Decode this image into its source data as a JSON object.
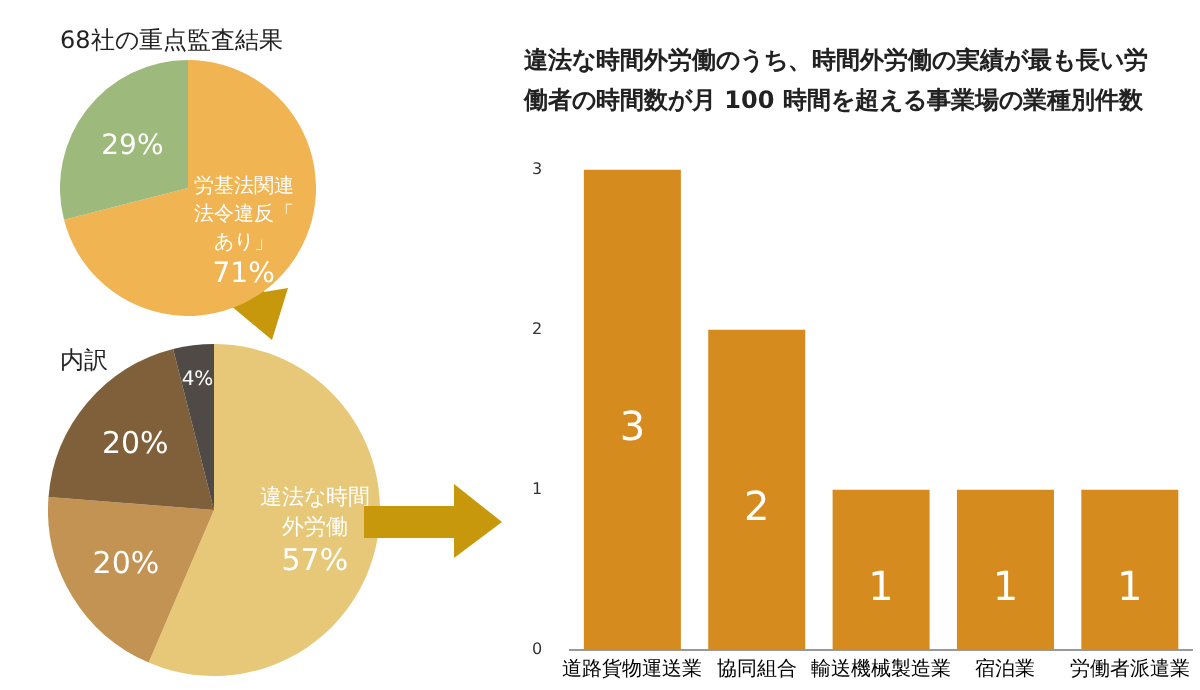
{
  "chart_data": [
    {
      "type": "pie",
      "title": "68社の重点監査結果",
      "categories": [
        "労基法関連法令違反「あり」",
        null
      ],
      "values": [
        71,
        29
      ],
      "value_labels": [
        "71%",
        "29%"
      ],
      "colors": [
        "#f0b452",
        "#9db97b"
      ],
      "legend": false
    },
    {
      "type": "pie",
      "title": "内訳",
      "categories": [
        "違法な時間外労働",
        null,
        null,
        null
      ],
      "values": [
        57,
        20,
        20,
        4
      ],
      "value_labels": [
        "57%",
        "20%",
        "20%",
        "4%"
      ],
      "colors": [
        "#e6c878",
        "#c29352",
        "#7f603b",
        "#4f4a45"
      ],
      "legend": false
    },
    {
      "type": "bar",
      "title": "違法な時間外労働のうち、時間外労働の実績が最も長い労働者の時間数が月 100 時間を超える事業場の業種別件数",
      "categories": [
        "道路貨物運送業",
        "協同組合",
        "輸送機械製造業",
        "宿泊業",
        "労働者派遣業"
      ],
      "values": [
        3,
        2,
        1,
        1,
        1
      ],
      "color": "#d68b1e",
      "ylim": [
        0,
        3
      ],
      "yticks": [
        0,
        1,
        2,
        3
      ],
      "grid": false,
      "legend": false,
      "data_labels": true
    }
  ]
}
